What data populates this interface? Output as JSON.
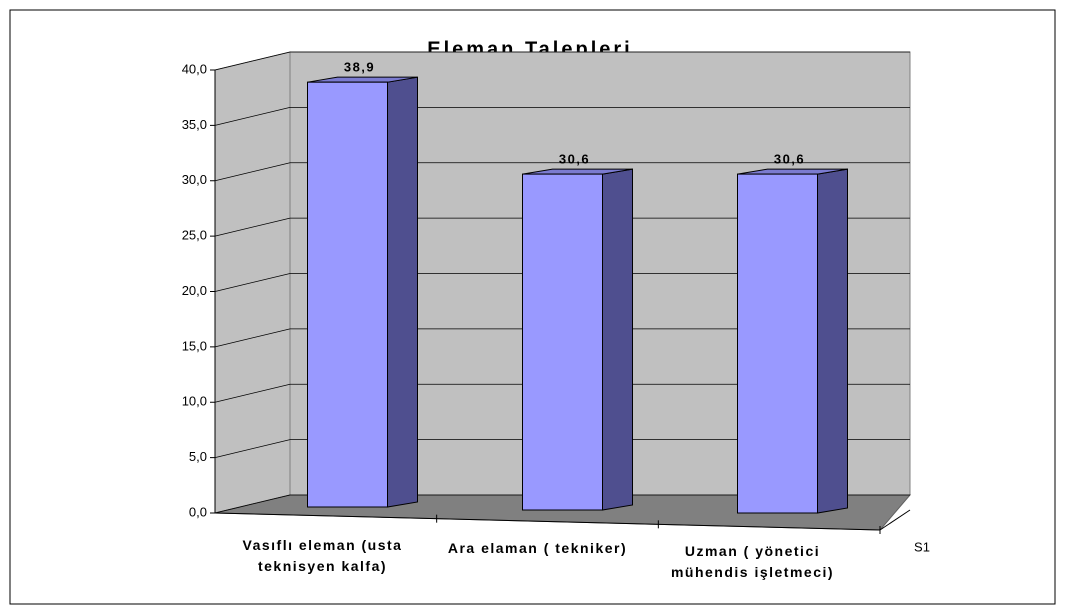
{
  "chart_data": {
    "type": "bar3d",
    "title": "Eleman Talepleri",
    "categories": [
      "Vasıflı eleman (usta teknisyen kalfa)",
      "Ara elaman ( tekniker)",
      "Uzman ( yönetici mühendis işletmeci)"
    ],
    "series": [
      {
        "name": "S1",
        "color": "#9999ff",
        "values": [
          38.9,
          30.6,
          30.6
        ],
        "value_labels": [
          "38,9",
          "30,6",
          "30,6"
        ]
      }
    ],
    "ylim": [
      0,
      40
    ],
    "yticks": [
      {
        "value": 0,
        "label": "0,0"
      },
      {
        "value": 5,
        "label": "5,0"
      },
      {
        "value": 10,
        "label": "10,0"
      },
      {
        "value": 15,
        "label": "15,0"
      },
      {
        "value": 20,
        "label": "20,0"
      },
      {
        "value": 25,
        "label": "25,0"
      },
      {
        "value": 30,
        "label": "30,0"
      },
      {
        "value": 35,
        "label": "35,0"
      },
      {
        "value": 40,
        "label": "40,0"
      }
    ],
    "grid": true
  }
}
